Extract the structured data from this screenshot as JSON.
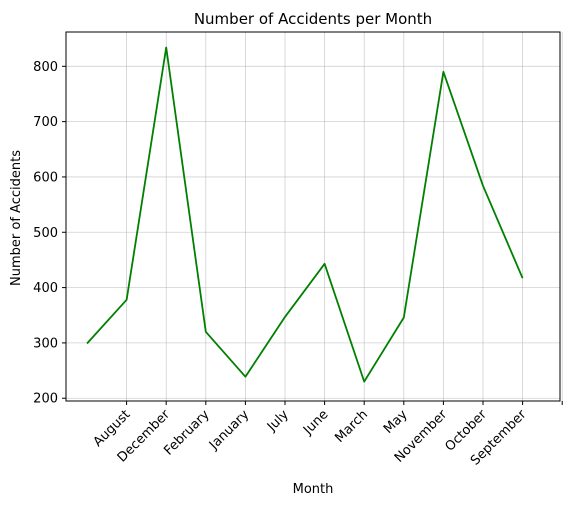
{
  "chart_data": {
    "type": "line",
    "title": "Number of Accidents per Month",
    "xlabel": "Month",
    "ylabel": "Number of Accidents",
    "categories": [
      "",
      "August",
      "December",
      "February",
      "January",
      "July",
      "June",
      "March",
      "May",
      "November",
      "October",
      "September"
    ],
    "series": [
      {
        "values": [
          299,
          378,
          834,
          320,
          239,
          347,
          443,
          230,
          346,
          790,
          584,
          417
        ]
      }
    ],
    "yticks": [
      200,
      300,
      400,
      500,
      600,
      700,
      800
    ],
    "ylim": [
      195,
      862
    ],
    "grid": true,
    "line_color": "#008000"
  }
}
